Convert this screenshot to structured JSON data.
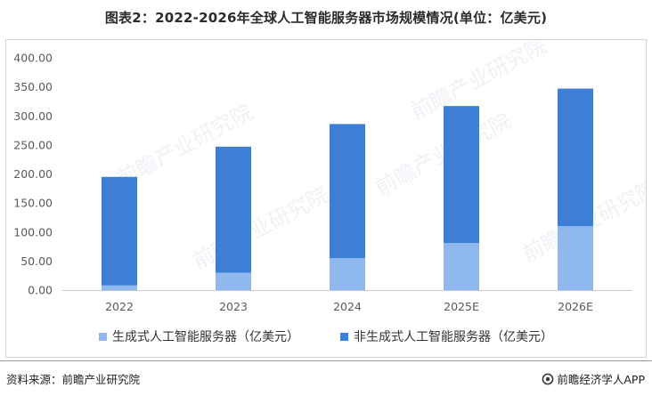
{
  "title": "图表2：2022-2026年全球人工智能服务器市场规模情况(单位：亿美元)",
  "source": "资料来源：前瞻产业研究院",
  "footer_brand": "前瞻经济学人APP",
  "watermark": "前瞻产业研究院",
  "chart_data": {
    "type": "bar",
    "stacked": true,
    "categories": [
      "2022",
      "2023",
      "2024",
      "2025E",
      "2026E"
    ],
    "series": [
      {
        "name": "生成式人工智能服务器（亿美元）",
        "color": "#8fb8ef",
        "values": [
          8,
          30,
          55,
          81,
          110
        ]
      },
      {
        "name": "非生成式人工智能服务器（亿美元）",
        "color": "#3d7ed6",
        "values": [
          187,
          217,
          231,
          236,
          237
        ]
      }
    ],
    "ylim": [
      0,
      400
    ],
    "yticks": [
      "0.00",
      "50.00",
      "100.00",
      "150.00",
      "200.00",
      "250.00",
      "300.00",
      "350.00",
      "400.00"
    ],
    "xlabel": "",
    "ylabel": "",
    "grid": false,
    "legend_position": "bottom"
  }
}
